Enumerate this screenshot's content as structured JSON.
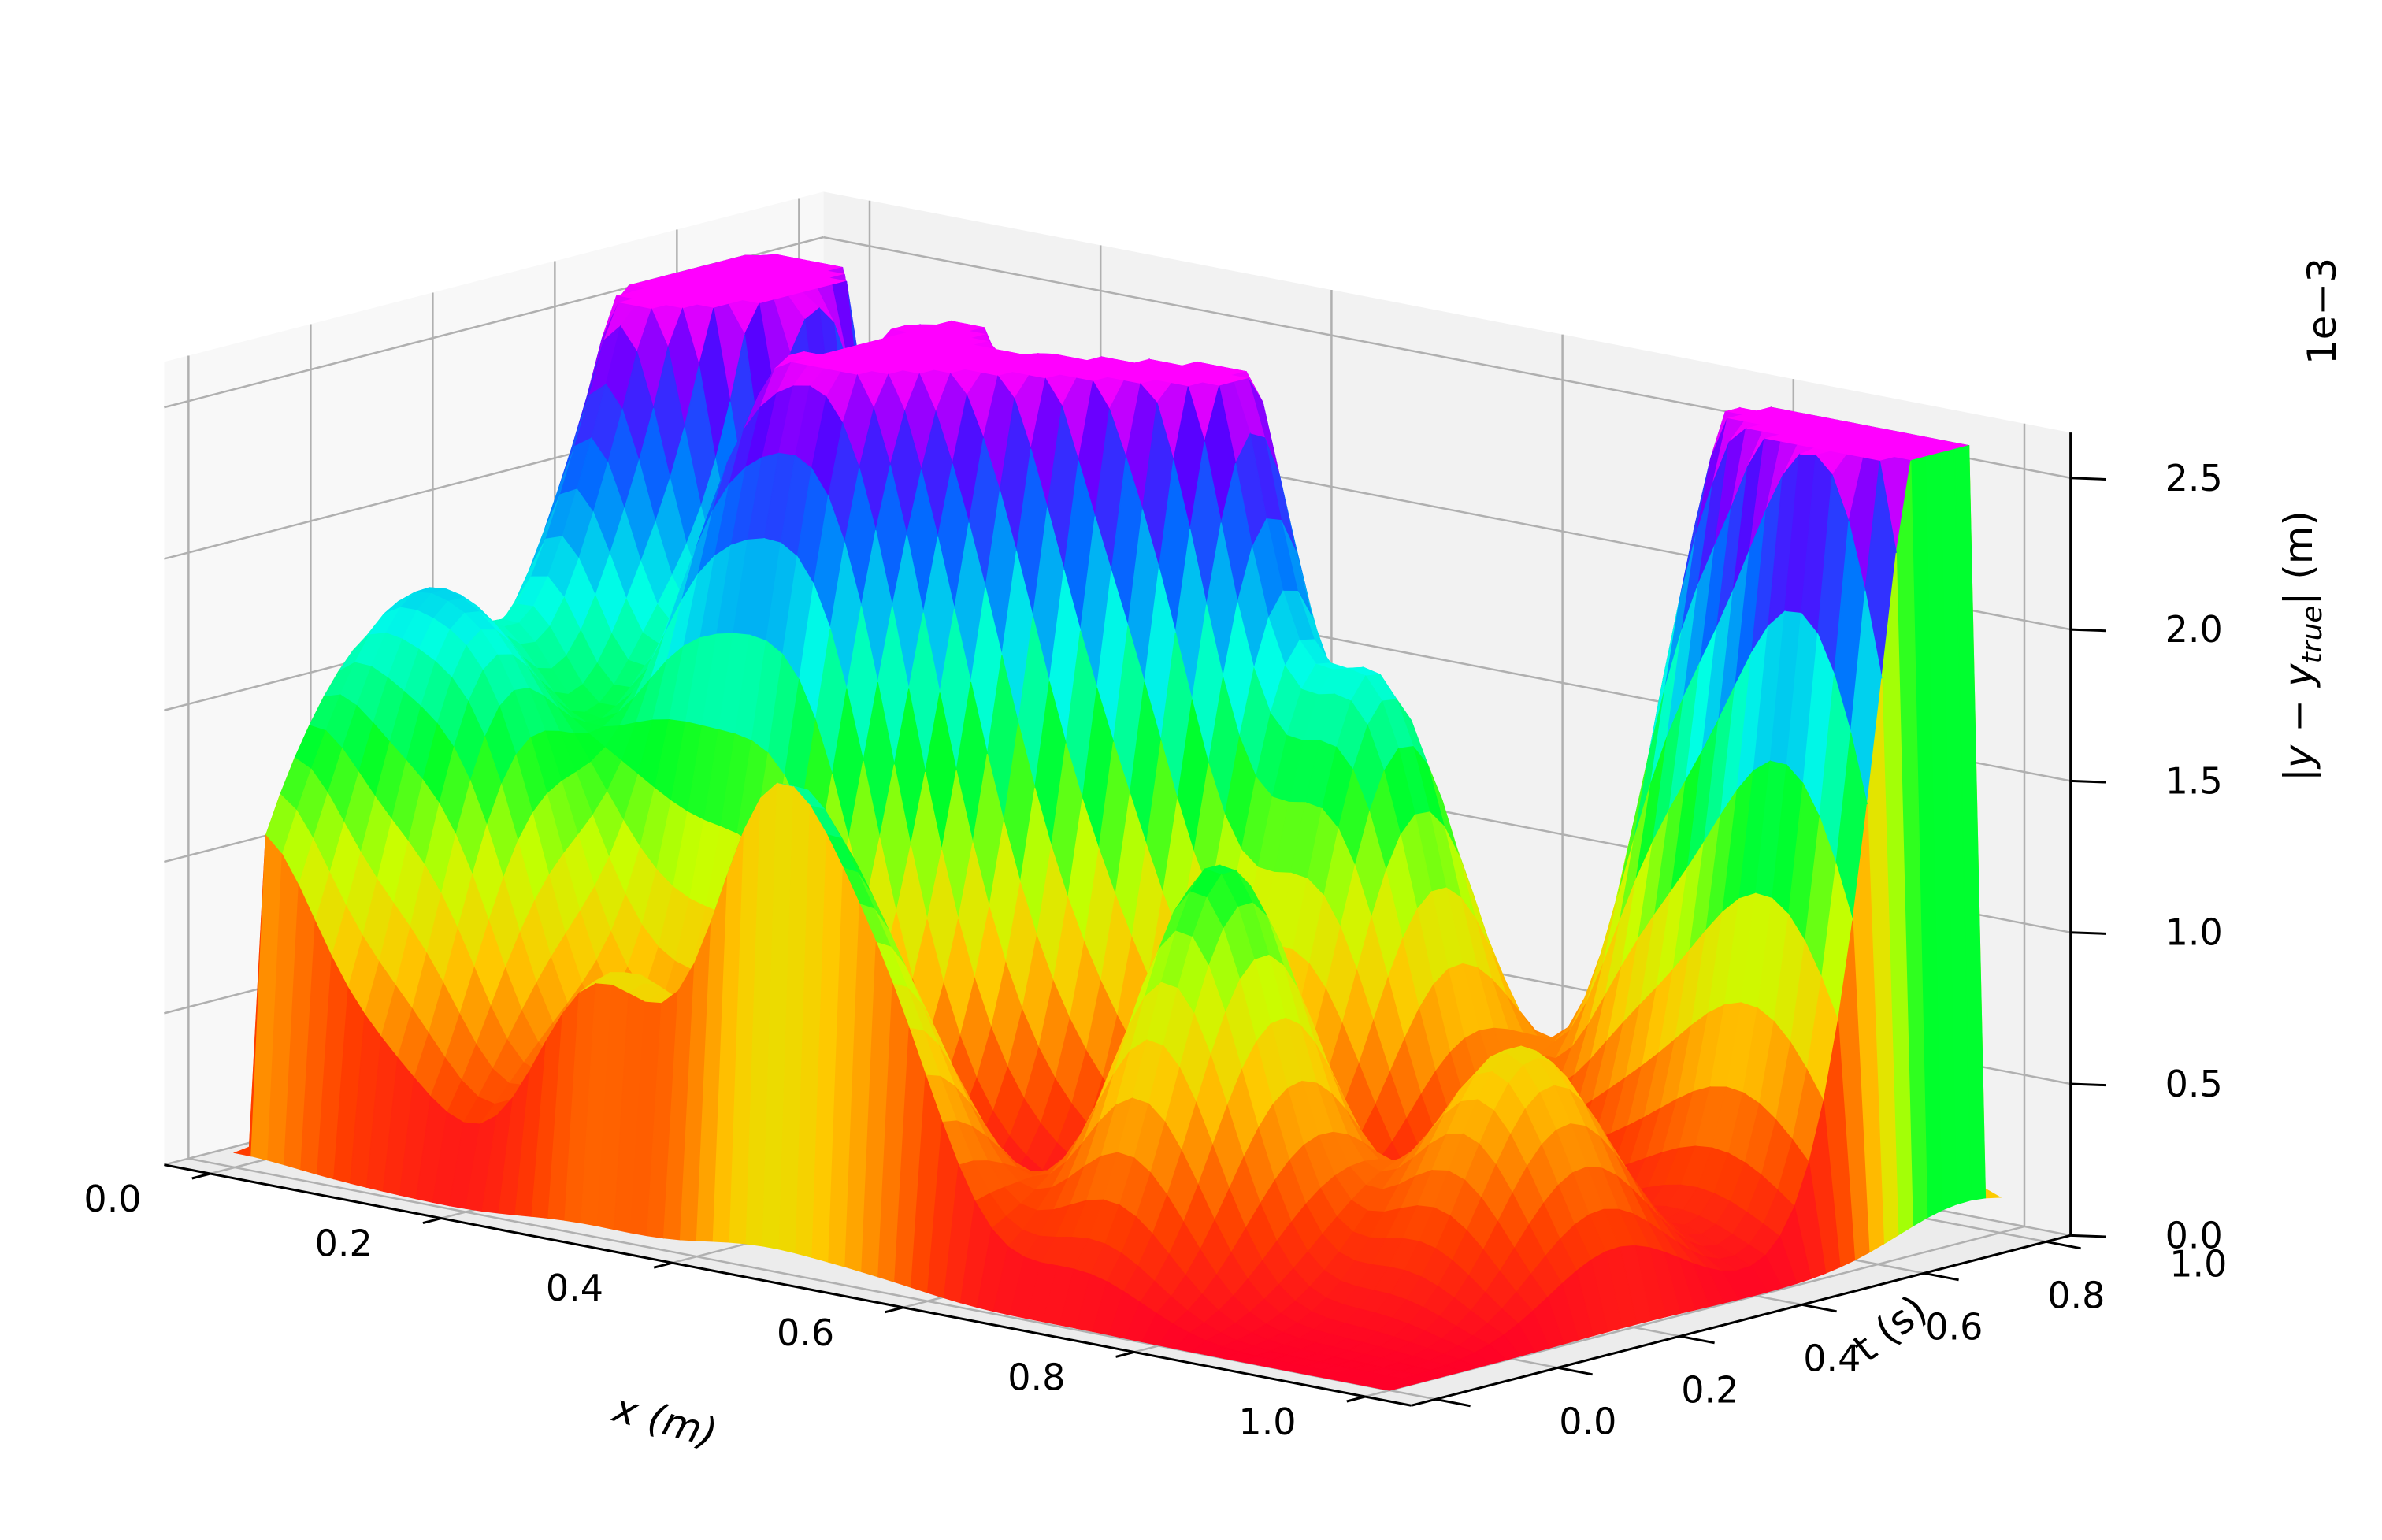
{
  "chart_data": {
    "type": "surface3d",
    "colormap": "gist_rainbow_r",
    "xlabel": "x (m)",
    "ylabel": "t (s)",
    "zlabel": "|y − y_true| (m)",
    "zlabel_parts": {
      "pre": "|y − y",
      "sub": "true",
      "post": "| (m)"
    },
    "z_offset_text": "1e−3",
    "xlim": [
      0.0,
      1.0
    ],
    "ylim": [
      0.0,
      1.0
    ],
    "zlim": [
      0.0,
      2.6
    ],
    "grid": true,
    "x_ticks": [
      "0.0",
      "0.2",
      "0.4",
      "0.6",
      "0.8",
      "1.0"
    ],
    "y_ticks": [
      "0.0",
      "0.2",
      "0.4",
      "0.6",
      "0.8",
      "1.0"
    ],
    "z_ticks": [
      "0.0",
      "0.5",
      "1.0",
      "1.5",
      "2.0",
      "2.5"
    ],
    "x_tick_values": [
      0.0,
      0.2,
      0.4,
      0.6,
      0.8,
      1.0
    ],
    "y_tick_values": [
      0.0,
      0.2,
      0.4,
      0.6,
      0.8,
      1.0
    ],
    "z_tick_values": [
      0.0,
      0.5,
      1.0,
      1.5,
      2.0,
      2.5
    ],
    "surface_peaks": [
      {
        "x": 0.03,
        "t": 0.75,
        "z": 2.55
      },
      {
        "x": 0.08,
        "t": 0.72,
        "z": 2.55
      },
      {
        "x": 0.25,
        "t": 0.7,
        "z": 2.45
      },
      {
        "x": 0.38,
        "t": 0.62,
        "z": 2.35
      },
      {
        "x": 0.48,
        "t": 0.7,
        "z": 2.55
      },
      {
        "x": 0.8,
        "t": 0.95,
        "z": 2.2
      },
      {
        "x": 0.9,
        "t": 0.92,
        "z": 2.2
      },
      {
        "x": 0.97,
        "t": 0.95,
        "z": 2.6
      },
      {
        "x": 0.05,
        "t": 0.5,
        "z": 1.75
      },
      {
        "x": 0.2,
        "t": 0.45,
        "z": 1.75
      },
      {
        "x": 0.3,
        "t": 0.45,
        "z": 1.9
      },
      {
        "x": 0.62,
        "t": 0.7,
        "z": 1.6
      },
      {
        "x": 0.02,
        "t": 0.25,
        "z": 1.2
      },
      {
        "x": 0.12,
        "t": 0.2,
        "z": 1.3
      },
      {
        "x": 0.0,
        "t": 0.05,
        "z": 0.95
      },
      {
        "x": 0.3,
        "t": 0.05,
        "z": 0.8
      },
      {
        "x": 0.45,
        "t": 0.03,
        "z": 1.4
      },
      {
        "x": 0.72,
        "t": 0.25,
        "z": 1.4
      },
      {
        "x": 0.55,
        "t": 0.02,
        "z": 0.8
      },
      {
        "x": 0.9,
        "t": 0.4,
        "z": 0.85
      }
    ]
  }
}
